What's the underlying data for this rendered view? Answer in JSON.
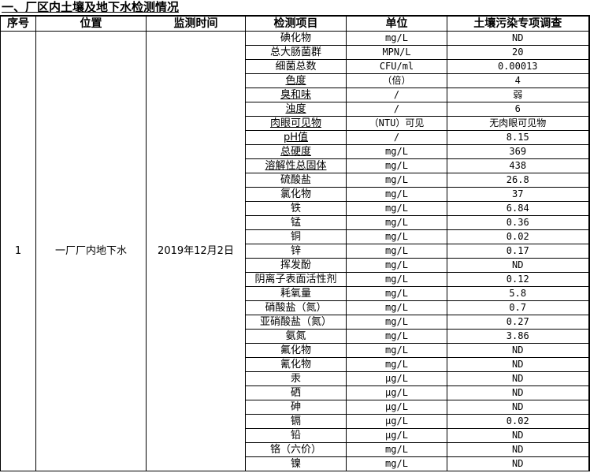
{
  "title": "一、厂区内土壤及地下水检测情况",
  "headers": [
    "序号",
    "位置",
    "监测时间",
    "检测项目",
    "单位",
    "土壤污染专项调查"
  ],
  "group": {
    "no": "1",
    "location": "一厂厂内地下水",
    "date": "2019年12月2日"
  },
  "rows": [
    {
      "item": "碘化物",
      "unit": "mg/L",
      "value": "ND"
    },
    {
      "item": "总大肠菌群",
      "unit": "MPN/L",
      "value": "20"
    },
    {
      "item": "细菌总数",
      "unit": "CFU/ml",
      "value": "0.00013"
    },
    {
      "item": "色度",
      "unit": "（倍）",
      "value": "4"
    },
    {
      "item": "臭和味",
      "unit": "/",
      "value": "弱"
    },
    {
      "item": "浊度",
      "unit": "/",
      "value": "6"
    },
    {
      "item": "肉眼可见物",
      "unit": "（NTU）可见",
      "value": "无肉眼可见物"
    },
    {
      "item": "pH值",
      "unit": "/",
      "value": "8.15"
    },
    {
      "item": "总硬度",
      "unit": "mg/L",
      "value": "369"
    },
    {
      "item": "溶解性总固体",
      "unit": "mg/L",
      "value": "438"
    },
    {
      "item": "硫酸盐",
      "unit": "mg/L",
      "value": "26.8"
    },
    {
      "item": "氯化物",
      "unit": "mg/L",
      "value": "37"
    },
    {
      "item": "铁",
      "unit": "mg/L",
      "value": "6.84"
    },
    {
      "item": "锰",
      "unit": "mg/L",
      "value": "0.36"
    },
    {
      "item": "铜",
      "unit": "mg/L",
      "value": "0.02"
    },
    {
      "item": "锌",
      "unit": "mg/L",
      "value": "0.17"
    },
    {
      "item": "挥发酚",
      "unit": "mg/L",
      "value": "ND"
    },
    {
      "item": "阴离子表面活性剂",
      "unit": "mg/L",
      "value": "0.12"
    },
    {
      "item": "耗氧量",
      "unit": "mg/L",
      "value": "5.8"
    },
    {
      "item": "硝酸盐（氮）",
      "unit": "mg/L",
      "value": "0.7"
    },
    {
      "item": "亚硝酸盐（氮）",
      "unit": "mg/L",
      "value": "0.27"
    },
    {
      "item": "氨氮",
      "unit": "mg/L",
      "value": "3.86"
    },
    {
      "item": "氟化物",
      "unit": "mg/L",
      "value": "ND"
    },
    {
      "item": "氰化物",
      "unit": "mg/L",
      "value": "ND"
    },
    {
      "item": "汞",
      "unit": "μg/L",
      "value": "ND"
    },
    {
      "item": "硒",
      "unit": "μg/L",
      "value": "ND"
    },
    {
      "item": "砷",
      "unit": "μg/L",
      "value": "ND"
    },
    {
      "item": "镉",
      "unit": "μg/L",
      "value": "0.02"
    },
    {
      "item": "铅",
      "unit": "μg/L",
      "value": "ND"
    },
    {
      "item": "铬（六价）",
      "unit": "mg/L",
      "value": "ND"
    },
    {
      "item": "镍",
      "unit": "mg/L",
      "value": "ND"
    }
  ]
}
